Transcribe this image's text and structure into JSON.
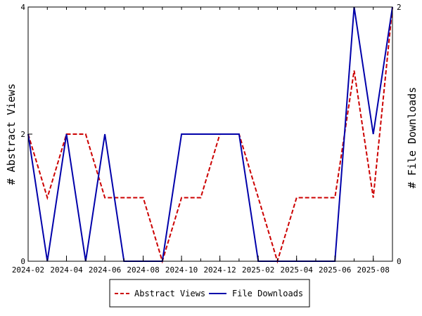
{
  "chart_data": {
    "type": "line",
    "x": [
      "2024-02",
      "2024-03",
      "2024-04",
      "2024-05",
      "2024-06",
      "2024-07",
      "2024-08",
      "2024-09",
      "2024-10",
      "2024-11",
      "2024-12",
      "2025-01",
      "2025-02",
      "2025-03",
      "2025-04",
      "2025-05",
      "2025-06",
      "2025-07",
      "2025-08",
      "2025-09"
    ],
    "x_tick_labels": [
      "2024-02",
      "2024-04",
      "2024-06",
      "2024-08",
      "2024-10",
      "2024-12",
      "2025-02",
      "2025-04",
      "2025-06",
      "2025-08"
    ],
    "series": [
      {
        "name": "Abstract Views",
        "axis": "left",
        "color": "#cc0000",
        "dash": "dashed",
        "values": [
          2,
          1,
          2,
          2,
          1,
          1,
          1,
          0,
          1,
          1,
          2,
          2,
          1,
          0,
          1,
          1,
          1,
          3,
          1,
          4
        ]
      },
      {
        "name": "File Downloads",
        "axis": "right",
        "color": "#0000aa",
        "dash": "solid",
        "values": [
          1,
          0,
          1,
          0,
          1,
          0,
          0,
          0,
          1,
          1,
          1,
          1,
          0,
          0,
          0,
          0,
          0,
          2,
          1,
          2
        ]
      }
    ],
    "ylabel_left": "# Abstract Views",
    "ylabel_right": "# File Downloads",
    "ylim_left": [
      0,
      4
    ],
    "ylim_right": [
      0,
      2
    ],
    "y_ticks_left": [
      0,
      2,
      4
    ],
    "y_ticks_right": [
      0,
      2
    ],
    "legend_position": "bottom-center",
    "grid": false
  }
}
